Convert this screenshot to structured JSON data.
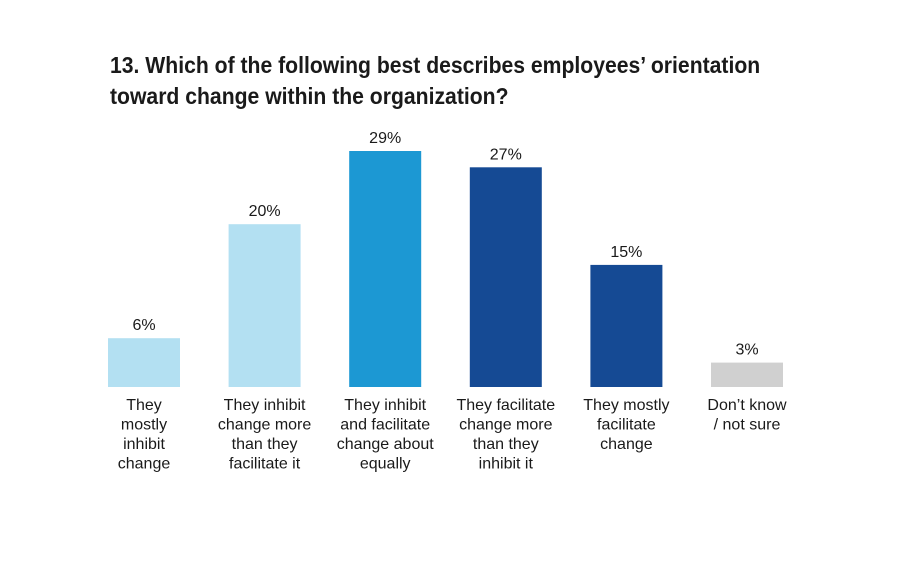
{
  "chart_data": {
    "type": "bar",
    "title_lines": [
      "13. Which of the following best describes employees’ orientation",
      "toward change within the organization?"
    ],
    "categories": [
      [
        "They",
        "mostly",
        "inhibit",
        "change"
      ],
      [
        "They inhibit",
        "change more",
        "than they",
        "facilitate it"
      ],
      [
        "They inhibit",
        "and facilitate",
        "change about",
        "equally"
      ],
      [
        "They facilitate",
        "change more",
        "than they",
        "inhibit it"
      ],
      [
        "They mostly",
        "facilitate",
        "change"
      ],
      [
        "Don’t know",
        "/ not sure"
      ]
    ],
    "values": [
      6,
      20,
      29,
      27,
      15,
      3
    ],
    "value_labels": [
      "6%",
      "20%",
      "29%",
      "27%",
      "15%",
      "3%"
    ],
    "colors": [
      "#b3e0f2",
      "#b3e0f2",
      "#1c98d3",
      "#154a94",
      "#154a94",
      "#d0d0d0"
    ],
    "ylim": [
      0,
      29
    ]
  }
}
